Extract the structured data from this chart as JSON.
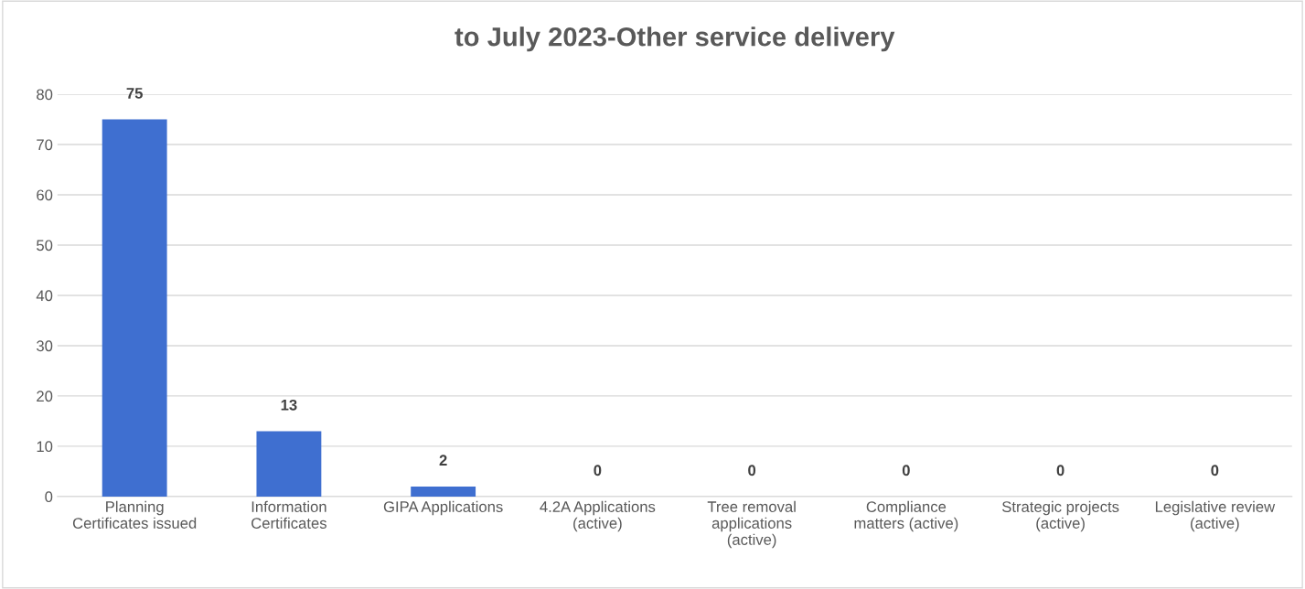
{
  "chart_data": {
    "type": "bar",
    "title": "to July 2023-Other service delivery",
    "categories": [
      "Planning\nCertificates issued",
      "Information\nCertificates",
      "GIPA Applications",
      "4.2A Applications\n(active)",
      "Tree removal\napplications\n(active)",
      "Compliance\nmatters (active)",
      "Strategic projects\n(active)",
      "Legislative review\n(active)"
    ],
    "values": [
      75,
      13,
      2,
      0,
      0,
      0,
      0,
      0
    ],
    "color": "#3f6fd0",
    "ylim": [
      0,
      80
    ],
    "yticks": [
      0,
      10,
      20,
      30,
      40,
      50,
      60,
      70,
      80
    ],
    "grid": "y",
    "data_labels": true
  }
}
